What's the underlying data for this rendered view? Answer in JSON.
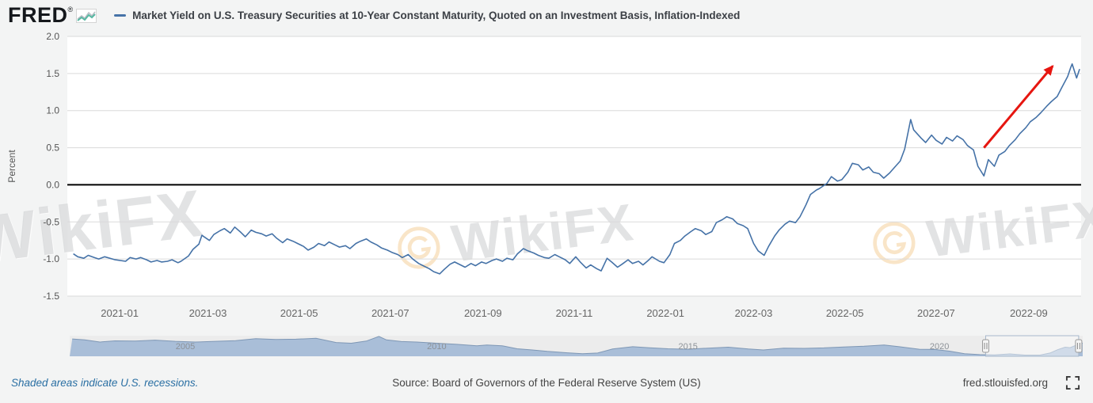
{
  "header": {
    "logo_text": "FRED",
    "registered": "®",
    "legend_title": "Market Yield on U.S. Treasury Securities at 10-Year Constant Maturity, Quoted on an Investment Basis, Inflation-Indexed",
    "legend_color": "#4572a7"
  },
  "watermark": {
    "text": "WikiFX",
    "logo_color": "#f2c078"
  },
  "footer": {
    "recessions_note": "Shaded areas indicate U.S. recessions.",
    "source": "Source: Board of Governors of the Federal Reserve System (US)",
    "site": "fred.stlouisfed.org"
  },
  "chart_data": {
    "type": "line",
    "title": "Market Yield on U.S. Treasury Securities at 10-Year Constant Maturity, Quoted on an Investment Basis, Inflation-Indexed",
    "ylabel": "Percent",
    "ylim": [
      -1.5,
      2.0
    ],
    "yticks": [
      2.0,
      1.5,
      1.0,
      0.5,
      0.0,
      -0.5,
      -1.0,
      -1.5
    ],
    "xtick_labels": [
      "2021-01",
      "2021-03",
      "2021-05",
      "2021-07",
      "2021-09",
      "2021-11",
      "2022-01",
      "2022-03",
      "2022-05",
      "2022-07",
      "2022-09"
    ],
    "x_range": [
      "2020-11-27",
      "2022-10-06"
    ],
    "grid": true,
    "line_color": "#4572a7",
    "zero_line": {
      "value": 0.0,
      "color": "#000000"
    },
    "annotation_arrow": {
      "from": [
        "2022-08-02",
        0.5
      ],
      "to": [
        "2022-09-17",
        1.6
      ],
      "color": "#e61610"
    },
    "series": [
      {
        "name": "Market Yield on U.S. Treasury Securities at 10-Year Constant Maturity, Quoted on an Investment Basis, Inflation-Indexed",
        "points": [
          [
            "2020-12-01",
            -0.93
          ],
          [
            "2020-12-04",
            -0.97
          ],
          [
            "2020-12-08",
            -0.99
          ],
          [
            "2020-12-11",
            -0.95
          ],
          [
            "2020-12-15",
            -0.98
          ],
          [
            "2020-12-18",
            -1.0
          ],
          [
            "2020-12-22",
            -0.97
          ],
          [
            "2020-12-29",
            -1.01
          ],
          [
            "2021-01-05",
            -1.03
          ],
          [
            "2021-01-08",
            -0.98
          ],
          [
            "2021-01-12",
            -1.0
          ],
          [
            "2021-01-15",
            -0.98
          ],
          [
            "2021-01-19",
            -1.01
          ],
          [
            "2021-01-22",
            -1.04
          ],
          [
            "2021-01-26",
            -1.02
          ],
          [
            "2021-01-29",
            -1.04
          ],
          [
            "2021-02-02",
            -1.03
          ],
          [
            "2021-02-05",
            -1.01
          ],
          [
            "2021-02-09",
            -1.05
          ],
          [
            "2021-02-11",
            -1.03
          ],
          [
            "2021-02-16",
            -0.96
          ],
          [
            "2021-02-19",
            -0.87
          ],
          [
            "2021-02-23",
            -0.8
          ],
          [
            "2021-02-25",
            -0.68
          ],
          [
            "2021-03-02",
            -0.75
          ],
          [
            "2021-03-05",
            -0.67
          ],
          [
            "2021-03-09",
            -0.62
          ],
          [
            "2021-03-12",
            -0.59
          ],
          [
            "2021-03-16",
            -0.65
          ],
          [
            "2021-03-19",
            -0.57
          ],
          [
            "2021-03-23",
            -0.64
          ],
          [
            "2021-03-26",
            -0.7
          ],
          [
            "2021-03-30",
            -0.61
          ],
          [
            "2021-04-02",
            -0.64
          ],
          [
            "2021-04-06",
            -0.66
          ],
          [
            "2021-04-09",
            -0.69
          ],
          [
            "2021-04-13",
            -0.66
          ],
          [
            "2021-04-16",
            -0.72
          ],
          [
            "2021-04-20",
            -0.78
          ],
          [
            "2021-04-23",
            -0.73
          ],
          [
            "2021-04-27",
            -0.76
          ],
          [
            "2021-04-30",
            -0.79
          ],
          [
            "2021-05-04",
            -0.83
          ],
          [
            "2021-05-07",
            -0.88
          ],
          [
            "2021-05-11",
            -0.84
          ],
          [
            "2021-05-14",
            -0.79
          ],
          [
            "2021-05-18",
            -0.82
          ],
          [
            "2021-05-21",
            -0.77
          ],
          [
            "2021-05-25",
            -0.81
          ],
          [
            "2021-05-28",
            -0.84
          ],
          [
            "2021-06-01",
            -0.82
          ],
          [
            "2021-06-04",
            -0.86
          ],
          [
            "2021-06-08",
            -0.79
          ],
          [
            "2021-06-11",
            -0.76
          ],
          [
            "2021-06-15",
            -0.73
          ],
          [
            "2021-06-18",
            -0.77
          ],
          [
            "2021-06-22",
            -0.81
          ],
          [
            "2021-06-25",
            -0.85
          ],
          [
            "2021-06-29",
            -0.88
          ],
          [
            "2021-07-02",
            -0.91
          ],
          [
            "2021-07-06",
            -0.94
          ],
          [
            "2021-07-09",
            -0.98
          ],
          [
            "2021-07-13",
            -0.94
          ],
          [
            "2021-07-16",
            -1.0
          ],
          [
            "2021-07-20",
            -1.06
          ],
          [
            "2021-07-23",
            -1.09
          ],
          [
            "2021-07-27",
            -1.13
          ],
          [
            "2021-07-30",
            -1.17
          ],
          [
            "2021-08-03",
            -1.2
          ],
          [
            "2021-08-06",
            -1.14
          ],
          [
            "2021-08-10",
            -1.07
          ],
          [
            "2021-08-13",
            -1.04
          ],
          [
            "2021-08-17",
            -1.08
          ],
          [
            "2021-08-20",
            -1.11
          ],
          [
            "2021-08-24",
            -1.06
          ],
          [
            "2021-08-27",
            -1.09
          ],
          [
            "2021-08-31",
            -1.04
          ],
          [
            "2021-09-03",
            -1.06
          ],
          [
            "2021-09-07",
            -1.02
          ],
          [
            "2021-09-10",
            -1.0
          ],
          [
            "2021-09-14",
            -1.03
          ],
          [
            "2021-09-17",
            -0.99
          ],
          [
            "2021-09-21",
            -1.01
          ],
          [
            "2021-09-24",
            -0.93
          ],
          [
            "2021-09-28",
            -0.86
          ],
          [
            "2021-10-01",
            -0.89
          ],
          [
            "2021-10-05",
            -0.92
          ],
          [
            "2021-10-08",
            -0.95
          ],
          [
            "2021-10-12",
            -0.98
          ],
          [
            "2021-10-15",
            -0.99
          ],
          [
            "2021-10-19",
            -0.94
          ],
          [
            "2021-10-22",
            -0.97
          ],
          [
            "2021-10-26",
            -1.01
          ],
          [
            "2021-10-29",
            -1.06
          ],
          [
            "2021-11-02",
            -0.97
          ],
          [
            "2021-11-05",
            -1.04
          ],
          [
            "2021-11-09",
            -1.12
          ],
          [
            "2021-11-12",
            -1.08
          ],
          [
            "2021-11-16",
            -1.13
          ],
          [
            "2021-11-19",
            -1.16
          ],
          [
            "2021-11-23",
            -0.99
          ],
          [
            "2021-11-26",
            -1.04
          ],
          [
            "2021-11-30",
            -1.11
          ],
          [
            "2021-12-03",
            -1.07
          ],
          [
            "2021-12-07",
            -1.01
          ],
          [
            "2021-12-10",
            -1.06
          ],
          [
            "2021-12-14",
            -1.03
          ],
          [
            "2021-12-17",
            -1.08
          ],
          [
            "2021-12-21",
            -1.01
          ],
          [
            "2021-12-23",
            -0.97
          ],
          [
            "2021-12-28",
            -1.03
          ],
          [
            "2021-12-31",
            -1.05
          ],
          [
            "2022-01-04",
            -0.94
          ],
          [
            "2022-01-07",
            -0.79
          ],
          [
            "2022-01-11",
            -0.75
          ],
          [
            "2022-01-14",
            -0.69
          ],
          [
            "2022-01-18",
            -0.63
          ],
          [
            "2022-01-21",
            -0.59
          ],
          [
            "2022-01-25",
            -0.62
          ],
          [
            "2022-01-28",
            -0.67
          ],
          [
            "2022-02-01",
            -0.63
          ],
          [
            "2022-02-04",
            -0.51
          ],
          [
            "2022-02-08",
            -0.47
          ],
          [
            "2022-02-11",
            -0.43
          ],
          [
            "2022-02-15",
            -0.46
          ],
          [
            "2022-02-18",
            -0.52
          ],
          [
            "2022-02-22",
            -0.55
          ],
          [
            "2022-02-25",
            -0.59
          ],
          [
            "2022-03-01",
            -0.79
          ],
          [
            "2022-03-04",
            -0.89
          ],
          [
            "2022-03-08",
            -0.95
          ],
          [
            "2022-03-11",
            -0.83
          ],
          [
            "2022-03-15",
            -0.69
          ],
          [
            "2022-03-18",
            -0.61
          ],
          [
            "2022-03-22",
            -0.53
          ],
          [
            "2022-03-25",
            -0.49
          ],
          [
            "2022-03-29",
            -0.51
          ],
          [
            "2022-04-01",
            -0.43
          ],
          [
            "2022-04-05",
            -0.27
          ],
          [
            "2022-04-08",
            -0.13
          ],
          [
            "2022-04-12",
            -0.07
          ],
          [
            "2022-04-14",
            -0.05
          ],
          [
            "2022-04-19",
            0.02
          ],
          [
            "2022-04-22",
            0.11
          ],
          [
            "2022-04-26",
            0.05
          ],
          [
            "2022-04-29",
            0.07
          ],
          [
            "2022-05-03",
            0.17
          ],
          [
            "2022-05-06",
            0.29
          ],
          [
            "2022-05-10",
            0.27
          ],
          [
            "2022-05-13",
            0.2
          ],
          [
            "2022-05-17",
            0.24
          ],
          [
            "2022-05-20",
            0.17
          ],
          [
            "2022-05-24",
            0.15
          ],
          [
            "2022-05-27",
            0.09
          ],
          [
            "2022-05-31",
            0.16
          ],
          [
            "2022-06-03",
            0.23
          ],
          [
            "2022-06-07",
            0.32
          ],
          [
            "2022-06-10",
            0.48
          ],
          [
            "2022-06-14",
            0.88
          ],
          [
            "2022-06-16",
            0.74
          ],
          [
            "2022-06-21",
            0.63
          ],
          [
            "2022-06-24",
            0.57
          ],
          [
            "2022-06-28",
            0.67
          ],
          [
            "2022-07-01",
            0.6
          ],
          [
            "2022-07-05",
            0.55
          ],
          [
            "2022-07-08",
            0.64
          ],
          [
            "2022-07-12",
            0.59
          ],
          [
            "2022-07-15",
            0.66
          ],
          [
            "2022-07-19",
            0.61
          ],
          [
            "2022-07-22",
            0.53
          ],
          [
            "2022-07-26",
            0.47
          ],
          [
            "2022-07-29",
            0.25
          ],
          [
            "2022-08-02",
            0.12
          ],
          [
            "2022-08-05",
            0.34
          ],
          [
            "2022-08-09",
            0.25
          ],
          [
            "2022-08-12",
            0.4
          ],
          [
            "2022-08-16",
            0.45
          ],
          [
            "2022-08-19",
            0.53
          ],
          [
            "2022-08-23",
            0.61
          ],
          [
            "2022-08-26",
            0.69
          ],
          [
            "2022-08-30",
            0.77
          ],
          [
            "2022-09-02",
            0.85
          ],
          [
            "2022-09-06",
            0.91
          ],
          [
            "2022-09-09",
            0.97
          ],
          [
            "2022-09-13",
            1.06
          ],
          [
            "2022-09-16",
            1.12
          ],
          [
            "2022-09-20",
            1.19
          ],
          [
            "2022-09-23",
            1.31
          ],
          [
            "2022-09-27",
            1.46
          ],
          [
            "2022-09-29",
            1.58
          ],
          [
            "2022-09-30",
            1.63
          ],
          [
            "2022-10-03",
            1.44
          ],
          [
            "2022-10-05",
            1.56
          ]
        ]
      }
    ],
    "navigator": {
      "x_range": [
        2002.7,
        2022.85
      ],
      "y_range": [
        -1.3,
        3.1
      ],
      "tick_years": [
        2005,
        2010,
        2015,
        2020
      ],
      "tick_labels": [
        "2005",
        "2010",
        "2015",
        "2020"
      ],
      "selected_range": [
        2020.92,
        2022.77
      ],
      "area_fill": "#a9bed8",
      "area_line": "#7e97b5",
      "points": [
        [
          2002.75,
          2.4
        ],
        [
          2003.0,
          2.2
        ],
        [
          2003.3,
          1.75
        ],
        [
          2003.6,
          2.0
        ],
        [
          2004.0,
          1.95
        ],
        [
          2004.4,
          2.15
        ],
        [
          2004.8,
          1.9
        ],
        [
          2005.2,
          1.75
        ],
        [
          2005.6,
          1.9
        ],
        [
          2006.0,
          2.05
        ],
        [
          2006.4,
          2.45
        ],
        [
          2006.8,
          2.3
        ],
        [
          2007.2,
          2.35
        ],
        [
          2007.6,
          2.55
        ],
        [
          2008.0,
          1.65
        ],
        [
          2008.3,
          1.5
        ],
        [
          2008.6,
          1.95
        ],
        [
          2008.85,
          2.95
        ],
        [
          2009.0,
          2.2
        ],
        [
          2009.3,
          1.85
        ],
        [
          2009.6,
          1.75
        ],
        [
          2010.0,
          1.5
        ],
        [
          2010.4,
          1.25
        ],
        [
          2010.8,
          0.95
        ],
        [
          2011.0,
          1.1
        ],
        [
          2011.3,
          0.95
        ],
        [
          2011.6,
          0.3
        ],
        [
          2011.9,
          0.05
        ],
        [
          2012.2,
          -0.25
        ],
        [
          2012.6,
          -0.55
        ],
        [
          2012.9,
          -0.75
        ],
        [
          2013.2,
          -0.6
        ],
        [
          2013.5,
          0.25
        ],
        [
          2013.9,
          0.75
        ],
        [
          2014.2,
          0.55
        ],
        [
          2014.6,
          0.3
        ],
        [
          2015.0,
          0.2
        ],
        [
          2015.4,
          0.45
        ],
        [
          2015.8,
          0.65
        ],
        [
          2016.2,
          0.25
        ],
        [
          2016.5,
          0.05
        ],
        [
          2016.9,
          0.45
        ],
        [
          2017.3,
          0.4
        ],
        [
          2017.7,
          0.5
        ],
        [
          2018.1,
          0.7
        ],
        [
          2018.5,
          0.85
        ],
        [
          2018.9,
          1.1
        ],
        [
          2019.2,
          0.75
        ],
        [
          2019.6,
          0.2
        ],
        [
          2019.9,
          0.15
        ],
        [
          2020.2,
          -0.2
        ],
        [
          2020.5,
          -0.75
        ],
        [
          2020.8,
          -0.95
        ],
        [
          2021.1,
          -1.0
        ],
        [
          2021.4,
          -0.8
        ],
        [
          2021.7,
          -1.05
        ],
        [
          2022.0,
          -1.05
        ],
        [
          2022.2,
          -0.6
        ],
        [
          2022.35,
          0.1
        ],
        [
          2022.5,
          0.65
        ],
        [
          2022.6,
          0.55
        ],
        [
          2022.75,
          1.2
        ],
        [
          2022.85,
          1.55
        ]
      ]
    }
  }
}
